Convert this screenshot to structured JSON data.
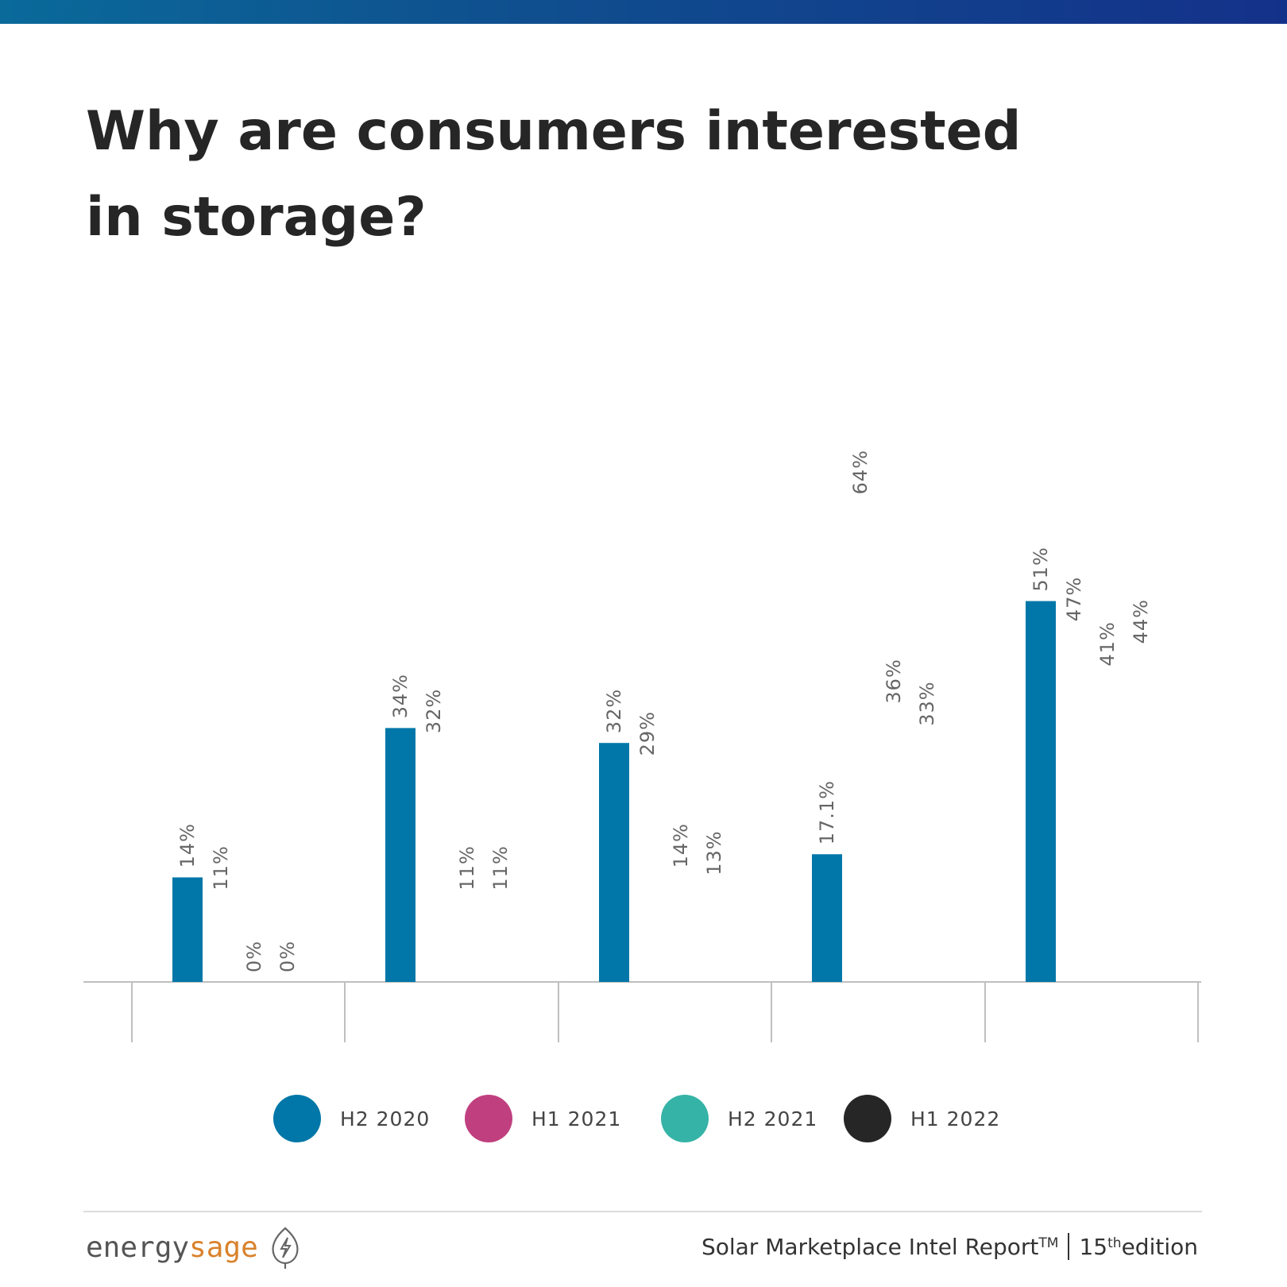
{
  "header": {
    "title_line1": "Why are consumers interested",
    "title_line2": "in storage?"
  },
  "colors": {
    "top_bar": "#0f4f8f",
    "h2_2020": "#0077a8",
    "h1_2021": "#c0407f",
    "h2_2021": "#35b3a6",
    "h1_2022": "#262626",
    "label_text": "#666666",
    "axis": "#bfbfbf"
  },
  "chart_data": {
    "type": "bar",
    "categories": [
      "",
      "",
      "",
      "",
      ""
    ],
    "series": [
      {
        "name": "H2 2020",
        "values": [
          14,
          34,
          32,
          17.1,
          51
        ],
        "labels": [
          "14%",
          "34%",
          "32%",
          "17.1%",
          "51%"
        ]
      },
      {
        "name": "H1 2021",
        "values": [
          11,
          32,
          29,
          64,
          47
        ],
        "labels": [
          "11%",
          "32%",
          "29%",
          "64%",
          "47%"
        ]
      },
      {
        "name": "H2 2021",
        "values": [
          0,
          11,
          14,
          36,
          41
        ],
        "labels": [
          "0%",
          "11%",
          "14%",
          "36%",
          "41%"
        ]
      },
      {
        "name": "H1 2022",
        "values": [
          0,
          11,
          13,
          33,
          44
        ],
        "labels": [
          "0%",
          "11%",
          "13%",
          "33%",
          "44%"
        ]
      }
    ],
    "visible_series": [
      "H2 2020"
    ],
    "ylim": [
      0,
      100
    ],
    "grid": false,
    "legend_position": "bottom"
  },
  "legend": [
    {
      "label": "H2 2020",
      "color": "#0077a8"
    },
    {
      "label": "H1 2021",
      "color": "#c0407f"
    },
    {
      "label": "H2 2021",
      "color": "#35b3a6"
    },
    {
      "label": "H1 2022",
      "color": "#262626"
    }
  ],
  "footer": {
    "brand_part1": "energy",
    "brand_part2": "sage",
    "report_text": "Solar Marketplace Intel Report",
    "report_tm": "TM",
    "edition_num": "15",
    "edition_sup": "th",
    "edition_word": " edition"
  }
}
